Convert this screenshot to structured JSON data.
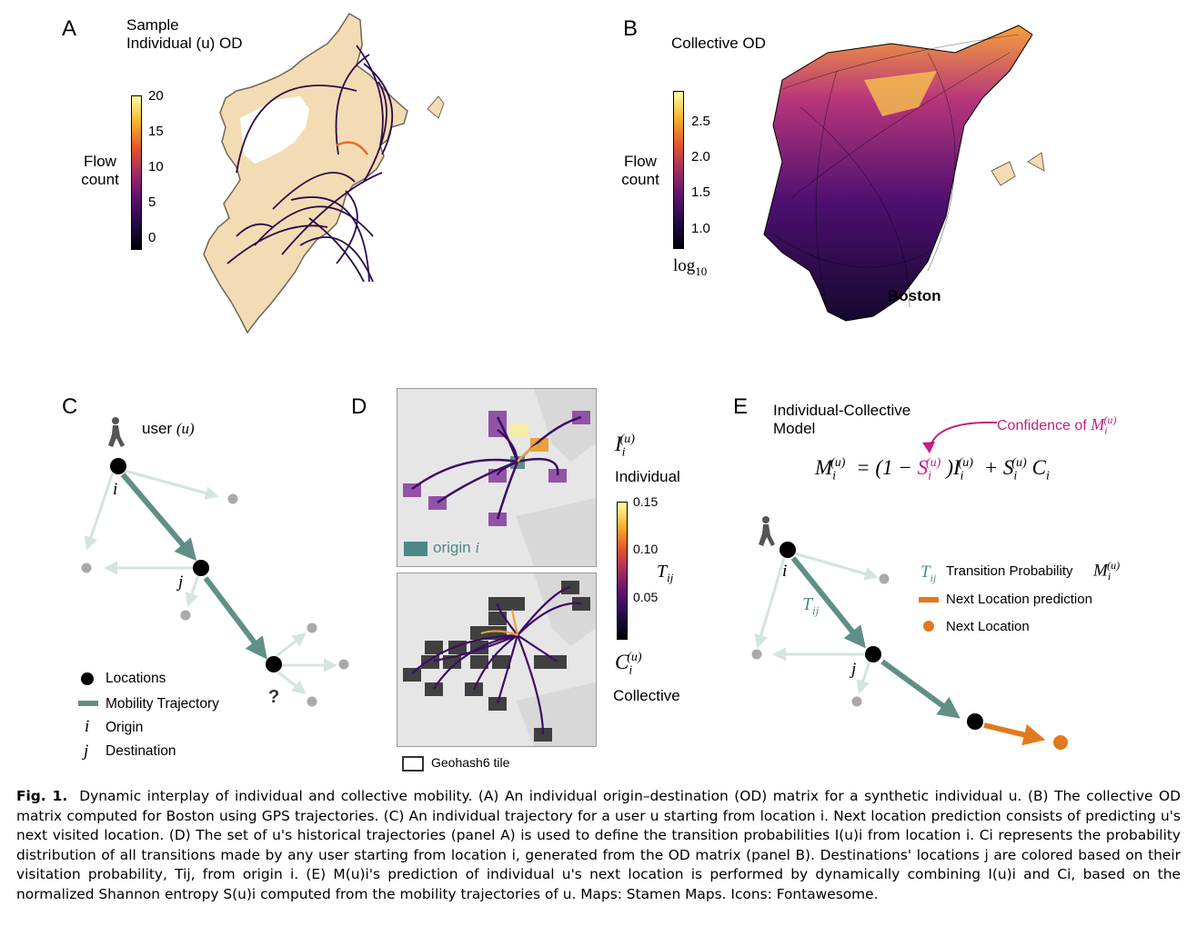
{
  "panelA": {
    "label": "A",
    "title_line1": "Sample",
    "title_line2": "Individual (u) OD",
    "cbar_label_line1": "Flow",
    "cbar_label_line2": "count",
    "ticks": [
      "20",
      "15",
      "10",
      "5",
      "0"
    ]
  },
  "panelB": {
    "label": "B",
    "title": "Collective OD",
    "cbar_label_line1": "Flow",
    "cbar_label_line2": "count",
    "ticks": [
      "2.5",
      "2.0",
      "1.5",
      "1.0"
    ],
    "log_label": "log",
    "log_sub": "10",
    "city": "Boston"
  },
  "panelC": {
    "label": "C",
    "user": "user",
    "user_sym": "(u)",
    "node_i": "i",
    "node_j": "j",
    "question": "?",
    "legend": {
      "locations": "Locations",
      "trajectory": "Mobility Trajectory",
      "origin_sym": "i",
      "origin": "Origin",
      "dest_sym": "j",
      "destination": "Destination"
    }
  },
  "panelD": {
    "label": "D",
    "origin_label": "origin",
    "origin_sym": "i",
    "individual": "Individual",
    "collective": "Collective",
    "geohash": "Geohash6 tile",
    "ticks": [
      "0.15",
      "0.10",
      "0.05"
    ],
    "tij": "T",
    "tij_sub": "ij"
  },
  "panelE": {
    "label": "E",
    "title_line1": "Individual-Collective",
    "title_line2": "Model",
    "confidence": "Confidence of",
    "node_i": "i",
    "node_j": "j",
    "tij": "T",
    "tij_sub": "ij",
    "legend": {
      "transition": "Transition Probability",
      "prediction": "Next Location prediction",
      "next": "Next Location"
    }
  },
  "colors": {
    "map_land": "#f3dcb3",
    "map_border": "#6f6659",
    "trajectory": "#5f8f86",
    "faded": "#d4e4e0",
    "prediction": "#e07a1f",
    "magenta": "#c0207f"
  },
  "caption": {
    "fig": "Fig. 1.",
    "text": "Dynamic interplay of individual and collective mobility. (A) An individual origin–destination (OD) matrix for a synthetic individual u. (B) The collective OD matrix computed for Boston using GPS trajectories. (C) An individual trajectory for a user u starting from location i. Next location prediction consists of predicting u's next visited location. (D) The set of u's historical trajectories (panel A) is used to define the transition probabilities I(u)i from location i. Ci represents the probability distribution of all transitions made by any user starting from location i, generated from the OD matrix (panel B). Destinations' locations j are colored based on their visitation probability, Tij, from origin i. (E) M(u)i's prediction of individual u's next location is performed by dynamically combining I(u)i and Ci, based on the normalized Shannon entropy S(u)i computed from the mobility trajectories of u. Maps: Stamen Maps. Icons: Fontawesome."
  }
}
